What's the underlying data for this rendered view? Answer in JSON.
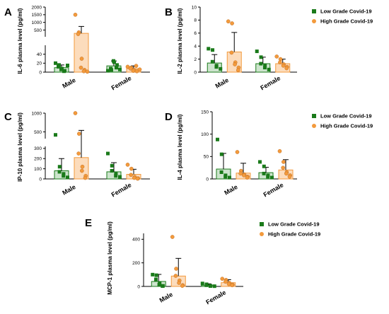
{
  "legend": [
    {
      "name": "Low Grade  Covid-19",
      "color": "#1a7a1a",
      "fill": "#cde4cd",
      "shape": "square"
    },
    {
      "name": "High Grade Covid-19",
      "color": "#f39a3c",
      "fill": "#fcdcbc",
      "shape": "circle"
    }
  ],
  "chart_data": [
    {
      "type": "bar",
      "panel": "A",
      "ylabel": "IL-6 plasma level (pg/ml)",
      "categories": [
        "Male",
        "Female"
      ],
      "axis_break": {
        "lower": [
          0,
          60
        ],
        "upper": [
          60,
          2000
        ]
      },
      "yticks_lower": [
        "0",
        "20",
        "40"
      ],
      "yticks_upper": [
        "500",
        "1000",
        "1500",
        "2000"
      ],
      "series": [
        {
          "name": "Low Grade  Covid-19",
          "values": [
            10,
            14
          ],
          "sd": [
            6,
            11
          ],
          "points": [
            [
              20,
              16,
              12,
              8,
              6,
              3,
              2,
              15
            ],
            [
              3,
              5,
              8,
              22,
              25,
              16,
              10,
              6
            ]
          ]
        },
        {
          "name": "High Grade Covid-19",
          "values": [
            285,
            8
          ],
          "sd": [
            450,
            6
          ],
          "points": [
            [
              1500,
              350,
              240,
              30,
              10,
              5,
              2,
              1
            ],
            [
              12,
              10,
              8,
              5,
              3,
              2,
              14,
              6
            ]
          ]
        }
      ]
    },
    {
      "type": "bar",
      "panel": "B",
      "ylabel": "IL-2 plasma level (pg/ml)",
      "categories": [
        "Male",
        "Female"
      ],
      "ylim": [
        0,
        10
      ],
      "yticks": [
        "0",
        "2",
        "4",
        "6",
        "8",
        "10"
      ],
      "series": [
        {
          "name": "Low Grade  Covid-19",
          "values": [
            1.4,
            1.3
          ],
          "sd": [
            1.3,
            1.0
          ],
          "points": [
            [
              3.6,
              3.4,
              1.6,
              1.0,
              0.8,
              0.5
            ],
            [
              3.2,
              2.3,
              1.3,
              1.0,
              0.7,
              0.4
            ]
          ]
        },
        {
          "name": "High Grade Covid-19",
          "values": [
            3.1,
            1.3
          ],
          "sd": [
            3.0,
            0.7
          ],
          "points": [
            [
              7.8,
              7.5,
              3.0,
              1.5,
              1.2,
              0.7,
              0.3
            ],
            [
              2.4,
              2.0,
              1.5,
              1.2,
              1.0,
              0.8,
              0.6
            ]
          ]
        }
      ]
    },
    {
      "type": "bar",
      "panel": "C",
      "ylabel": "IP-10 plasma level (pg/ml)",
      "categories": [
        "Male",
        "Female"
      ],
      "axis_break": {
        "lower": [
          0,
          320
        ],
        "upper": [
          320,
          1000
        ]
      },
      "yticks_lower": [
        "0",
        "100",
        "200",
        "300"
      ],
      "yticks_upper": [
        "500",
        "1000"
      ],
      "series": [
        {
          "name": "Low Grade  Covid-19",
          "values": [
            80,
            70
          ],
          "sd": [
            120,
            90
          ],
          "points": [
            [
              420,
              120,
              70,
              50,
              30,
              15
            ],
            [
              250,
              130,
              80,
              50,
              30,
              20
            ]
          ]
        },
        {
          "name": "High Grade Covid-19",
          "values": [
            210,
            45
          ],
          "sd": [
            330,
            50
          ],
          "points": [
            [
              1050,
              450,
              250,
              120,
              80,
              30,
              10
            ],
            [
              140,
              100,
              40,
              20,
              10,
              5,
              3
            ]
          ]
        }
      ]
    },
    {
      "type": "bar",
      "panel": "D",
      "ylabel": "IL-4 plasma level (pg/ml)",
      "categories": [
        "Male",
        "Female"
      ],
      "ylim": [
        0,
        150
      ],
      "yticks": [
        "0",
        "50",
        "100",
        "150"
      ],
      "series": [
        {
          "name": "Low Grade  Covid-19",
          "values": [
            22,
            14
          ],
          "sd": [
            35,
            12
          ],
          "points": [
            [
              88,
              55,
              15,
              8,
              5,
              3
            ],
            [
              38,
              28,
              12,
              8,
              5,
              3
            ]
          ]
        },
        {
          "name": "High Grade Covid-19",
          "values": [
            13,
            20
          ],
          "sd": [
            22,
            23
          ],
          "points": [
            [
              60,
              18,
              12,
              10,
              8,
              5,
              3
            ],
            [
              62,
              38,
              25,
              15,
              12,
              8,
              5
            ]
          ]
        }
      ]
    },
    {
      "type": "bar",
      "panel": "E",
      "ylabel": "MCP-1 plasma level (pg/ml)",
      "categories": [
        "Male",
        "Female"
      ],
      "ylim": [
        0,
        450
      ],
      "yticks": [
        "0",
        "200",
        "400"
      ],
      "series": [
        {
          "name": "Low Grade  Covid-19",
          "values": [
            42,
            10
          ],
          "sd": [
            60,
            12
          ],
          "points": [
            [
              100,
              95,
              60,
              30,
              15,
              5,
              3
            ],
            [
              25,
              18,
              10,
              5,
              3,
              2
            ]
          ]
        },
        {
          "name": "High Grade Covid-19",
          "values": [
            88,
            32
          ],
          "sd": [
            150,
            25
          ],
          "points": [
            [
              420,
              150,
              90,
              50,
              30,
              10,
              5
            ],
            [
              65,
              55,
              40,
              30,
              20,
              15,
              10
            ]
          ]
        }
      ]
    }
  ]
}
